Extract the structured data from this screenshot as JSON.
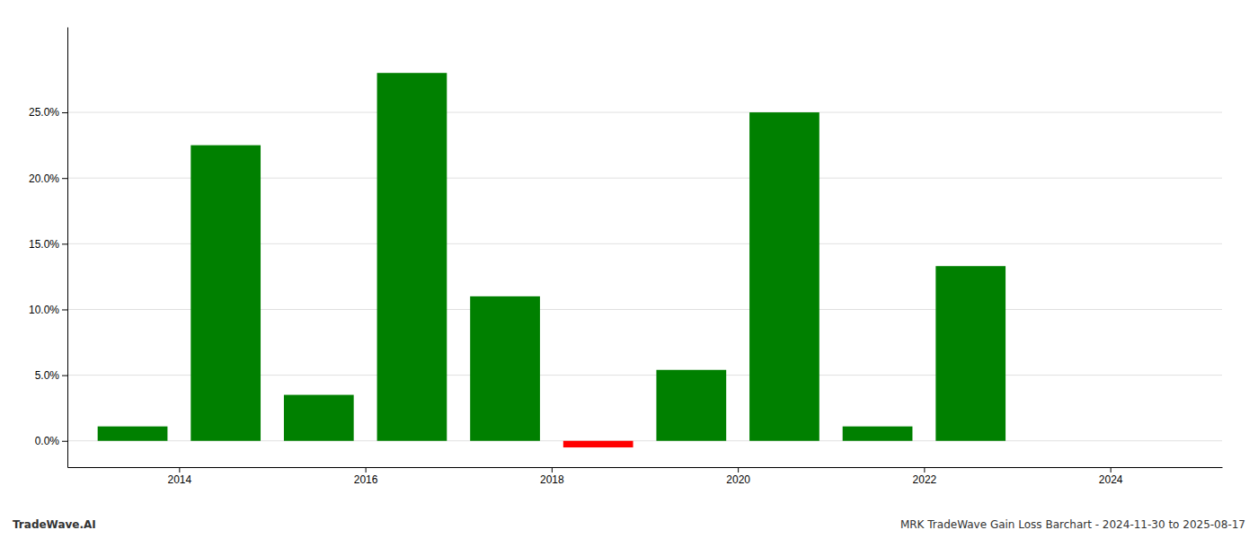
{
  "chart_data": {
    "type": "bar",
    "x": [
      2013.5,
      2014.5,
      2015.5,
      2016.5,
      2017.5,
      2018.5,
      2019.5,
      2020.5,
      2021.5,
      2022.5
    ],
    "values": [
      0.011,
      0.225,
      0.035,
      0.28,
      0.11,
      -0.005,
      0.054,
      0.25,
      0.011,
      0.133
    ],
    "colors": [
      "#008000",
      "#008000",
      "#008000",
      "#008000",
      "#008000",
      "#ff0000",
      "#008000",
      "#008000",
      "#008000",
      "#008000"
    ],
    "xlim": [
      2012.8,
      2025.2
    ],
    "xticks": [
      2014,
      2016,
      2018,
      2020,
      2022,
      2024
    ],
    "ylim": [
      -0.02,
      0.315
    ],
    "yticks": [
      {
        "value": 0.0,
        "label": "0.0%"
      },
      {
        "value": 0.05,
        "label": "5.0%"
      },
      {
        "value": 0.1,
        "label": "10.0%"
      },
      {
        "value": 0.15,
        "label": "15.0%"
      },
      {
        "value": 0.2,
        "label": "20.0%"
      },
      {
        "value": 0.25,
        "label": "25.0%"
      }
    ],
    "grid": true,
    "annotations": [
      "TradeWave.AI",
      "MRK TradeWave Gain Loss Barchart - 2024-11-30 to 2025-08-17"
    ]
  }
}
